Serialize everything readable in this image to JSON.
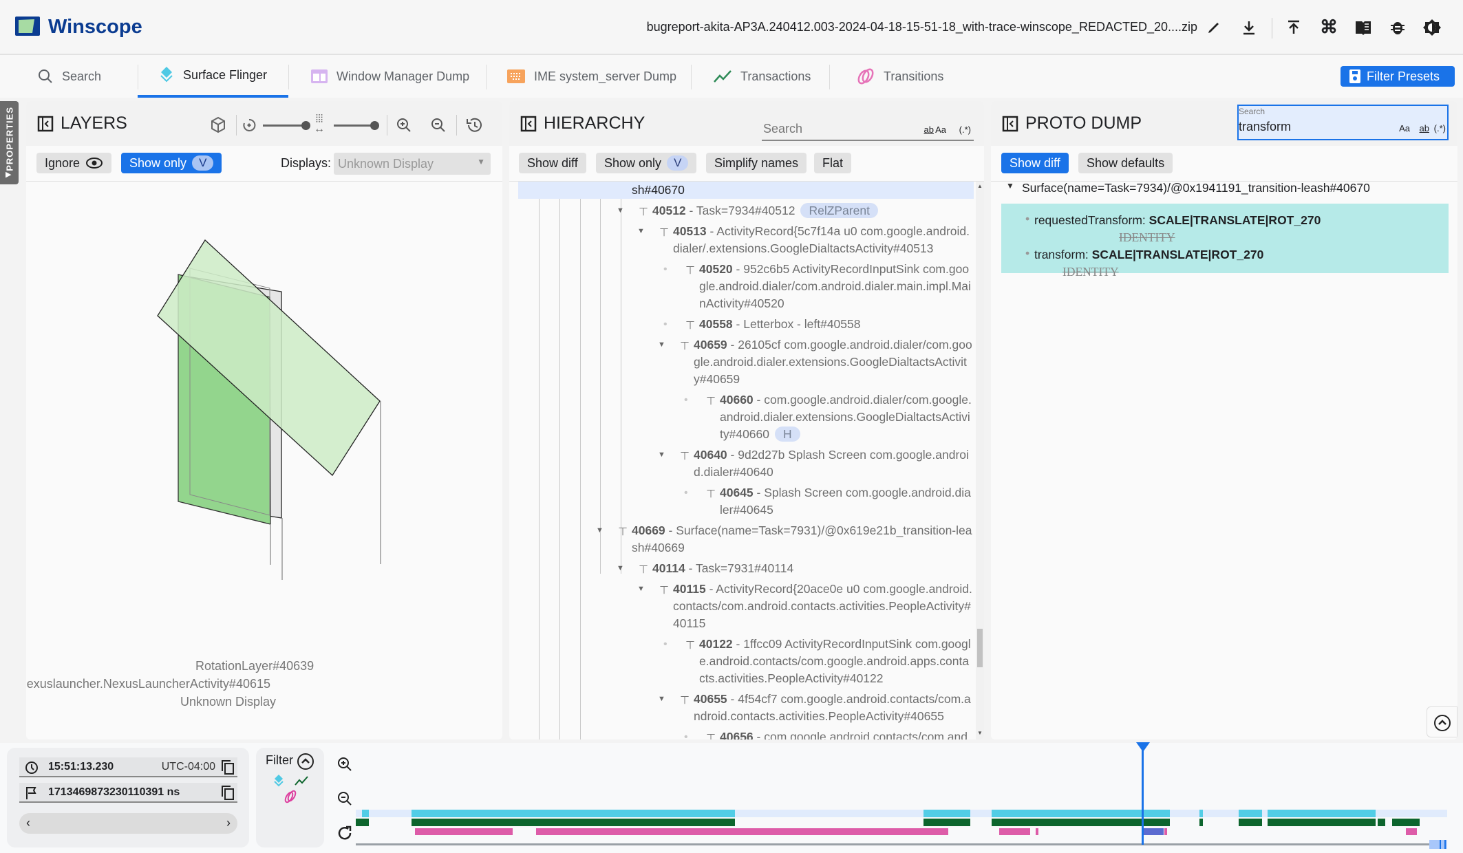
{
  "app": {
    "title": "Winscope",
    "filename": "bugreport-akita-AP3A.240412.003-2024-04-18-15-51-18_with-trace-winscope_REDACTED_20....zip",
    "header_icons": [
      "edit-icon",
      "download-icon",
      "upload-icon",
      "shortcuts-icon",
      "documentation-icon",
      "bug-icon",
      "theme-icon"
    ]
  },
  "tabs": [
    {
      "label": "Search",
      "icon": "search-icon"
    },
    {
      "label": "Surface Flinger",
      "icon": "layers-icon",
      "active": true
    },
    {
      "label": "Window Manager Dump",
      "icon": "window-icon"
    },
    {
      "label": "IME system_server Dump",
      "icon": "keyboard-icon"
    },
    {
      "label": "Transactions",
      "icon": "trend-icon"
    },
    {
      "label": "Transitions",
      "icon": "rings-icon"
    }
  ],
  "filter_presets": "Filter Presets",
  "properties_tab": "PROPERTIES",
  "layers": {
    "title": "LAYERS",
    "ignore": "Ignore",
    "show_only": "Show only",
    "show_only_key": "V",
    "displays_label": "Displays:",
    "displays_value": "Unknown Display",
    "labels": {
      "rotation": "RotationLayer#40639",
      "launcher": "exuslauncher.NexusLauncherActivity#40615",
      "display": "Unknown Display"
    }
  },
  "hierarchy": {
    "title": "HIERARCHY",
    "search_placeholder": "Search",
    "opts": [
      "Aa",
      "ab",
      "(.*)"
    ],
    "buttons": {
      "show_diff": "Show diff",
      "show_only": "Show only",
      "show_only_key": "V",
      "simplify": "Simplify names",
      "flat": "Flat"
    },
    "selected_tail": "sh#40670",
    "rows": [
      {
        "id": "40512",
        "name": "Task=7934#40512",
        "level": 1,
        "expandable": true,
        "badge": "RelZParent"
      },
      {
        "id": "40513",
        "name": "ActivityRecord{5c7f14a u0 com.google.android.dialer/.extensions.GoogleDialtactsActivity#40513",
        "level": 2,
        "expandable": true
      },
      {
        "id": "40520",
        "name": "952c6b5 ActivityRecordInputSink com.google.android.dialer/com.android.dialer.main.impl.MainActivity#40520",
        "level": 3,
        "expandable": false
      },
      {
        "id": "40558",
        "name": "Letterbox - left#40558",
        "level": 3,
        "expandable": false
      },
      {
        "id": "40659",
        "name": "26105cf com.google.android.dialer/com.google.android.dialer.extensions.GoogleDialtactsActivity#40659",
        "level": 3,
        "expandable": true
      },
      {
        "id": "40660",
        "name": "com.google.android.dialer/com.google.android.dialer.extensions.GoogleDialtactsActivity#40660",
        "level": 4,
        "expandable": false,
        "badge": "H"
      },
      {
        "id": "40640",
        "name": "9d2d27b Splash Screen com.google.android.dialer#40640",
        "level": 3,
        "expandable": true
      },
      {
        "id": "40645",
        "name": "Splash Screen com.google.android.dialer#40645",
        "level": 4,
        "expandable": false
      },
      {
        "id": "40669",
        "name": "Surface(name=Task=7931)/@0x619e21b_transition-leash#40669",
        "level": 0,
        "expandable": true
      },
      {
        "id": "40114",
        "name": "Task=7931#40114",
        "level": 1,
        "expandable": true
      },
      {
        "id": "40115",
        "name": "ActivityRecord{20ace0e u0 com.google.android.contacts/com.android.contacts.activities.PeopleActivity#40115",
        "level": 2,
        "expandable": true
      },
      {
        "id": "40122",
        "name": "1ffcc09 ActivityRecordInputSink com.google.android.contacts/com.google.android.apps.contacts.activities.PeopleActivity#40122",
        "level": 3,
        "expandable": false
      },
      {
        "id": "40655",
        "name": "4f54cf7 com.google.android.contacts/com.android.contacts.activities.PeopleActivity#40655",
        "level": 3,
        "expandable": true
      },
      {
        "id": "40656",
        "name": "com.google.android.contacts/com.and",
        "level": 4,
        "expandable": false
      }
    ]
  },
  "proto": {
    "title": "PROTO DUMP",
    "search_label": "Search",
    "search_value": "transform",
    "opts": [
      "Aa",
      "ab",
      "(.*)"
    ],
    "show_diff": "Show diff",
    "show_defaults": "Show defaults",
    "root": "Surface(name=Task=7934)/@0x1941191_transition-leash#40670",
    "props": [
      {
        "key": "requestedTransform:",
        "value": "SCALE|TRANSLATE|ROT_270",
        "old": "IDENTITY"
      },
      {
        "key": "transform:",
        "value": "SCALE|TRANSLATE|ROT_270",
        "old": "IDENTITY"
      }
    ],
    "diff_color": "#b6eae8"
  },
  "timeline": {
    "time": "15:51:13.230",
    "timezone": "UTC-04:00",
    "ns": "1713469873230110391 ns",
    "filter": "Filter",
    "colors": {
      "surface_flinger": "#52cde6",
      "transactions": "#0d652d",
      "transitions": "#dd5ca8",
      "cursor": "#1a73e8"
    }
  }
}
